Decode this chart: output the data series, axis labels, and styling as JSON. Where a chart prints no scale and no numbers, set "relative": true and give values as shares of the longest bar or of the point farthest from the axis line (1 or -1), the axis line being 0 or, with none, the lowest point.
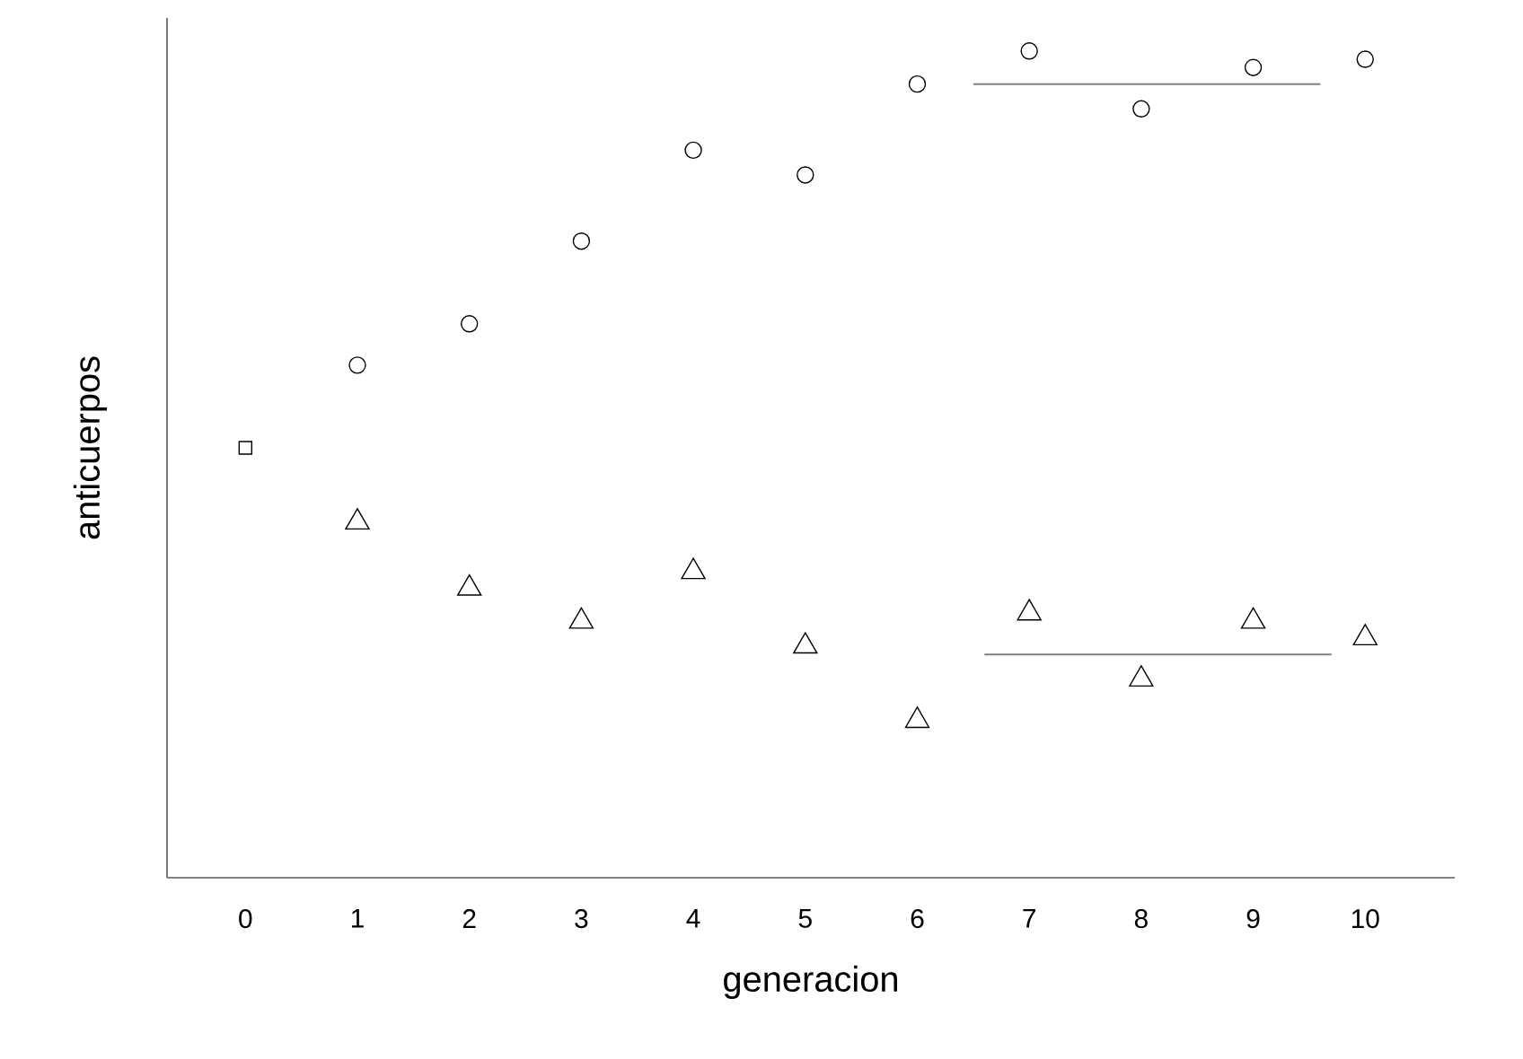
{
  "chart_data": {
    "type": "scatter",
    "xlabel": "generacion",
    "ylabel": "anticuerpos",
    "relative": true,
    "xlim": [
      -0.7,
      10.8
    ],
    "xticks": [
      0,
      1,
      2,
      3,
      4,
      5,
      6,
      7,
      8,
      9,
      10
    ],
    "series": [
      {
        "marker": "square",
        "color": "#000000",
        "x": [
          0
        ],
        "values": [
          0.52
        ]
      },
      {
        "marker": "circle",
        "color": "#000000",
        "x": [
          1,
          2,
          3,
          4,
          5,
          6,
          7,
          8,
          9,
          10
        ],
        "values": [
          0.62,
          0.67,
          0.77,
          0.88,
          0.85,
          0.96,
          1.0,
          0.93,
          0.98,
          0.99
        ]
      },
      {
        "marker": "triangle",
        "color": "#000000",
        "x": [
          1,
          2,
          3,
          4,
          5,
          6,
          7,
          8,
          9,
          10
        ],
        "values": [
          0.43,
          0.35,
          0.31,
          0.37,
          0.28,
          0.19,
          0.32,
          0.24,
          0.31,
          0.29
        ]
      },
      {
        "type": "line",
        "marker": "none",
        "color": "#808080",
        "x": [
          6.5,
          9.6
        ],
        "values": [
          0.96,
          0.96
        ]
      },
      {
        "type": "line",
        "marker": "none",
        "color": "#808080",
        "x": [
          6.6,
          9.7
        ],
        "values": [
          0.27,
          0.27
        ]
      }
    ]
  }
}
